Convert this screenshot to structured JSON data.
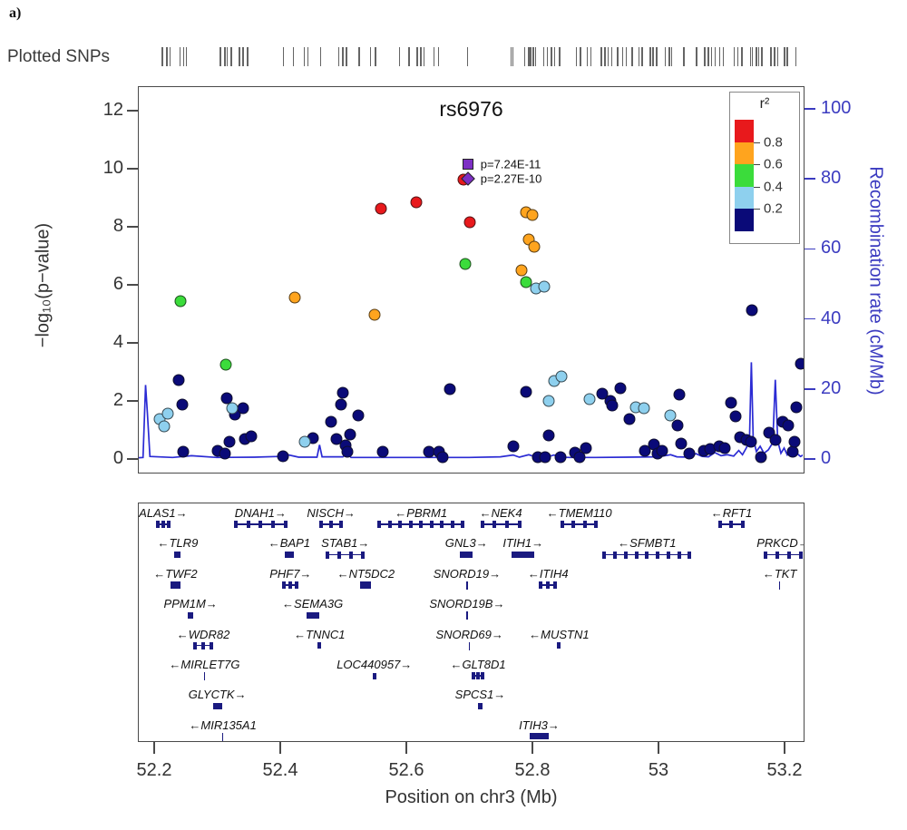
{
  "page": {
    "panel_label": "a)",
    "snp_track_label": "Plotted SNPs"
  },
  "colors": {
    "r2_bins": {
      "0.8-1.0": "#e8191c",
      "0.6-0.8": "#ffa41e",
      "0.4-0.6": "#3bdc3b",
      "0.2-0.4": "#8ed0ee",
      "0.0-0.2": "#0a0a78"
    },
    "recomb_line": "#2b2bd4",
    "right_axis": "#3b3bc0",
    "lead_marker": "#7d2fc4",
    "gene": "#1a1a80"
  },
  "chart_data": {
    "type": "scatter",
    "title": "rs6976",
    "xlabel": "Position on chr3 (Mb)",
    "ylabel_left": "−log₁₀(p−value)",
    "ylabel_right": "Recombination rate (cM/Mb)",
    "xlim": [
      52.174,
      53.232
    ],
    "ylim_left": [
      0,
      12
    ],
    "ylim_right": [
      0,
      100
    ],
    "x_ticks": [
      "52.2",
      "52.4",
      "52.6",
      "52.8",
      "53",
      "53.2"
    ],
    "x_tick_values": [
      52.2,
      52.4,
      52.6,
      52.8,
      53.0,
      53.2
    ],
    "y_ticks_left": [
      0,
      2,
      4,
      6,
      8,
      10,
      12
    ],
    "y_ticks_right": [
      0,
      20,
      40,
      60,
      80,
      100
    ],
    "grid": false,
    "legend": {
      "title": "r²",
      "position": "top-right",
      "bins": [
        "0.8-1.0",
        "0.6-0.8",
        "0.4-0.6",
        "0.2-0.4",
        "0.0-0.2"
      ],
      "tick_labels": [
        "0.8",
        "0.6",
        "0.4",
        "0.2"
      ]
    },
    "lead_snp": {
      "name": "rs6976",
      "square": {
        "x": 52.699,
        "y": 10.14,
        "label": "p=7.24E-11"
      },
      "diamond": {
        "x": 52.699,
        "y": 9.64,
        "label": "p=2.27E-10"
      }
    },
    "snps": [
      {
        "x": 52.24,
        "y": 2.7,
        "bin": "0.0-0.2"
      },
      {
        "x": 52.245,
        "y": 1.85,
        "bin": "0.0-0.2"
      },
      {
        "x": 52.247,
        "y": 0.25,
        "bin": "0.0-0.2"
      },
      {
        "x": 52.301,
        "y": 0.28,
        "bin": "0.0-0.2"
      },
      {
        "x": 52.313,
        "y": 0.18,
        "bin": "0.0-0.2"
      },
      {
        "x": 52.316,
        "y": 2.08,
        "bin": "0.0-0.2"
      },
      {
        "x": 52.32,
        "y": 0.58,
        "bin": "0.0-0.2"
      },
      {
        "x": 52.329,
        "y": 1.52,
        "bin": "0.0-0.2"
      },
      {
        "x": 52.342,
        "y": 1.73,
        "bin": "0.0-0.2"
      },
      {
        "x": 52.345,
        "y": 0.68,
        "bin": "0.0-0.2"
      },
      {
        "x": 52.354,
        "y": 0.76,
        "bin": "0.0-0.2"
      },
      {
        "x": 52.405,
        "y": 0.07,
        "bin": "0.0-0.2"
      },
      {
        "x": 52.452,
        "y": 0.7,
        "bin": "0.0-0.2"
      },
      {
        "x": 52.482,
        "y": 1.28,
        "bin": "0.0-0.2"
      },
      {
        "x": 52.49,
        "y": 0.68,
        "bin": "0.0-0.2"
      },
      {
        "x": 52.497,
        "y": 1.85,
        "bin": "0.0-0.2"
      },
      {
        "x": 52.5,
        "y": 2.28,
        "bin": "0.0-0.2"
      },
      {
        "x": 52.505,
        "y": 0.45,
        "bin": "0.0-0.2"
      },
      {
        "x": 52.507,
        "y": 0.22,
        "bin": "0.0-0.2"
      },
      {
        "x": 52.512,
        "y": 0.84,
        "bin": "0.0-0.2"
      },
      {
        "x": 52.524,
        "y": 1.5,
        "bin": "0.0-0.2"
      },
      {
        "x": 52.563,
        "y": 0.24,
        "bin": "0.0-0.2"
      },
      {
        "x": 52.636,
        "y": 0.22,
        "bin": "0.0-0.2"
      },
      {
        "x": 52.652,
        "y": 0.24,
        "bin": "0.0-0.2"
      },
      {
        "x": 52.658,
        "y": 0.06,
        "bin": "0.0-0.2"
      },
      {
        "x": 52.67,
        "y": 2.38,
        "bin": "0.0-0.2"
      },
      {
        "x": 52.771,
        "y": 0.42,
        "bin": "0.0-0.2"
      },
      {
        "x": 52.79,
        "y": 2.3,
        "bin": "0.0-0.2"
      },
      {
        "x": 52.809,
        "y": 0.05,
        "bin": "0.0-0.2"
      },
      {
        "x": 52.821,
        "y": 0.04,
        "bin": "0.0-0.2"
      },
      {
        "x": 52.826,
        "y": 0.8,
        "bin": "0.0-0.2"
      },
      {
        "x": 52.845,
        "y": 0.05,
        "bin": "0.0-0.2"
      },
      {
        "x": 52.869,
        "y": 0.2,
        "bin": "0.0-0.2"
      },
      {
        "x": 52.876,
        "y": 0.05,
        "bin": "0.0-0.2"
      },
      {
        "x": 52.886,
        "y": 0.36,
        "bin": "0.0-0.2"
      },
      {
        "x": 52.912,
        "y": 2.24,
        "bin": "0.0-0.2"
      },
      {
        "x": 52.924,
        "y": 1.98,
        "bin": "0.0-0.2"
      },
      {
        "x": 52.928,
        "y": 1.84,
        "bin": "0.0-0.2"
      },
      {
        "x": 52.941,
        "y": 2.42,
        "bin": "0.0-0.2"
      },
      {
        "x": 52.955,
        "y": 1.37,
        "bin": "0.0-0.2"
      },
      {
        "x": 52.979,
        "y": 0.26,
        "bin": "0.0-0.2"
      },
      {
        "x": 52.994,
        "y": 0.47,
        "bin": "0.0-0.2"
      },
      {
        "x": 52.999,
        "y": 0.16,
        "bin": "0.0-0.2"
      },
      {
        "x": 53.006,
        "y": 0.28,
        "bin": "0.0-0.2"
      },
      {
        "x": 53.031,
        "y": 1.15,
        "bin": "0.0-0.2"
      },
      {
        "x": 53.034,
        "y": 2.2,
        "bin": "0.0-0.2"
      },
      {
        "x": 53.037,
        "y": 0.52,
        "bin": "0.0-0.2"
      },
      {
        "x": 53.049,
        "y": 0.17,
        "bin": "0.0-0.2"
      },
      {
        "x": 53.073,
        "y": 0.27,
        "bin": "0.0-0.2"
      },
      {
        "x": 53.083,
        "y": 0.32,
        "bin": "0.0-0.2"
      },
      {
        "x": 53.097,
        "y": 0.43,
        "bin": "0.0-0.2"
      },
      {
        "x": 53.106,
        "y": 0.37,
        "bin": "0.0-0.2"
      },
      {
        "x": 53.116,
        "y": 1.93,
        "bin": "0.0-0.2"
      },
      {
        "x": 53.123,
        "y": 1.46,
        "bin": "0.0-0.2"
      },
      {
        "x": 53.13,
        "y": 0.74,
        "bin": "0.0-0.2"
      },
      {
        "x": 53.14,
        "y": 0.63,
        "bin": "0.0-0.2"
      },
      {
        "x": 53.147,
        "y": 0.58,
        "bin": "0.0-0.2"
      },
      {
        "x": 53.149,
        "y": 5.12,
        "bin": "0.0-0.2"
      },
      {
        "x": 53.164,
        "y": 0.06,
        "bin": "0.0-0.2"
      },
      {
        "x": 53.176,
        "y": 0.89,
        "bin": "0.0-0.2"
      },
      {
        "x": 53.186,
        "y": 0.63,
        "bin": "0.0-0.2"
      },
      {
        "x": 53.198,
        "y": 1.26,
        "bin": "0.0-0.2"
      },
      {
        "x": 53.207,
        "y": 1.15,
        "bin": "0.0-0.2"
      },
      {
        "x": 53.214,
        "y": 0.22,
        "bin": "0.0-0.2"
      },
      {
        "x": 53.217,
        "y": 0.58,
        "bin": "0.0-0.2"
      },
      {
        "x": 53.219,
        "y": 1.78,
        "bin": "0.0-0.2"
      },
      {
        "x": 53.226,
        "y": 3.28,
        "bin": "0.0-0.2"
      },
      {
        "x": 52.21,
        "y": 1.35,
        "bin": "0.2-0.4"
      },
      {
        "x": 52.217,
        "y": 1.1,
        "bin": "0.2-0.4"
      },
      {
        "x": 52.222,
        "y": 1.55,
        "bin": "0.2-0.4"
      },
      {
        "x": 52.324,
        "y": 1.72,
        "bin": "0.2-0.4"
      },
      {
        "x": 52.44,
        "y": 0.58,
        "bin": "0.2-0.4"
      },
      {
        "x": 52.807,
        "y": 5.85,
        "bin": "0.2-0.4"
      },
      {
        "x": 52.819,
        "y": 5.92,
        "bin": "0.2-0.4"
      },
      {
        "x": 52.827,
        "y": 2.0,
        "bin": "0.2-0.4"
      },
      {
        "x": 52.835,
        "y": 2.66,
        "bin": "0.2-0.4"
      },
      {
        "x": 52.847,
        "y": 2.84,
        "bin": "0.2-0.4"
      },
      {
        "x": 52.891,
        "y": 2.06,
        "bin": "0.2-0.4"
      },
      {
        "x": 52.965,
        "y": 1.77,
        "bin": "0.2-0.4"
      },
      {
        "x": 52.977,
        "y": 1.72,
        "bin": "0.2-0.4"
      },
      {
        "x": 53.02,
        "y": 1.47,
        "bin": "0.2-0.4"
      },
      {
        "x": 52.243,
        "y": 5.42,
        "bin": "0.4-0.6"
      },
      {
        "x": 52.314,
        "y": 3.22,
        "bin": "0.4-0.6"
      },
      {
        "x": 52.694,
        "y": 6.7,
        "bin": "0.4-0.6"
      },
      {
        "x": 52.791,
        "y": 6.08,
        "bin": "0.4-0.6"
      },
      {
        "x": 52.424,
        "y": 5.55,
        "bin": "0.6-0.8"
      },
      {
        "x": 52.55,
        "y": 4.95,
        "bin": "0.6-0.8"
      },
      {
        "x": 52.784,
        "y": 6.48,
        "bin": "0.6-0.8"
      },
      {
        "x": 52.79,
        "y": 8.48,
        "bin": "0.6-0.8"
      },
      {
        "x": 52.8,
        "y": 8.4,
        "bin": "0.6-0.8"
      },
      {
        "x": 52.795,
        "y": 7.55,
        "bin": "0.6-0.8"
      },
      {
        "x": 52.803,
        "y": 7.3,
        "bin": "0.6-0.8"
      },
      {
        "x": 52.56,
        "y": 8.62,
        "bin": "0.8-1.0"
      },
      {
        "x": 52.617,
        "y": 8.84,
        "bin": "0.8-1.0"
      },
      {
        "x": 52.701,
        "y": 8.15,
        "bin": "0.8-1.0"
      },
      {
        "x": 52.692,
        "y": 9.62,
        "bin": "0.8-1.0"
      }
    ],
    "recomb_line": [
      [
        52.174,
        0.2
      ],
      [
        52.183,
        0.3
      ],
      [
        52.187,
        21.0
      ],
      [
        52.19,
        13.0
      ],
      [
        52.194,
        0.6
      ],
      [
        52.23,
        0.3
      ],
      [
        52.26,
        0.8
      ],
      [
        52.3,
        0.3
      ],
      [
        52.36,
        0.4
      ],
      [
        52.4,
        0.6
      ],
      [
        52.41,
        1.2
      ],
      [
        52.43,
        0.4
      ],
      [
        52.459,
        0.4
      ],
      [
        52.463,
        3.9
      ],
      [
        52.467,
        0.5
      ],
      [
        52.5,
        0.5
      ],
      [
        52.507,
        1.5
      ],
      [
        52.513,
        0.3
      ],
      [
        52.55,
        0.3
      ],
      [
        52.6,
        0.3
      ],
      [
        52.65,
        0.3
      ],
      [
        52.7,
        0.3
      ],
      [
        52.75,
        0.5
      ],
      [
        52.77,
        1.0
      ],
      [
        52.78,
        0.4
      ],
      [
        52.795,
        1.1
      ],
      [
        52.805,
        0.5
      ],
      [
        52.815,
        0.9
      ],
      [
        52.825,
        0.5
      ],
      [
        52.835,
        1.0
      ],
      [
        52.845,
        0.4
      ],
      [
        52.86,
        0.3
      ],
      [
        52.9,
        0.3
      ],
      [
        52.95,
        0.4
      ],
      [
        53.0,
        0.5
      ],
      [
        53.02,
        1.1
      ],
      [
        53.03,
        0.5
      ],
      [
        53.05,
        0.4
      ],
      [
        53.06,
        1.4
      ],
      [
        53.07,
        0.6
      ],
      [
        53.08,
        0.5
      ],
      [
        53.09,
        1.7
      ],
      [
        53.1,
        0.8
      ],
      [
        53.11,
        1.1
      ],
      [
        53.12,
        0.7
      ],
      [
        53.128,
        2.3
      ],
      [
        53.134,
        1.1
      ],
      [
        53.14,
        3.0
      ],
      [
        53.145,
        5.0
      ],
      [
        53.148,
        27.5
      ],
      [
        53.151,
        6.0
      ],
      [
        53.156,
        2.0
      ],
      [
        53.162,
        3.5
      ],
      [
        53.168,
        1.5
      ],
      [
        53.175,
        2.5
      ],
      [
        53.182,
        4.5
      ],
      [
        53.186,
        22.5
      ],
      [
        53.19,
        5.0
      ],
      [
        53.195,
        1.5
      ],
      [
        53.2,
        3.0
      ],
      [
        53.205,
        1.0
      ],
      [
        53.21,
        2.0
      ],
      [
        53.215,
        0.8
      ],
      [
        53.22,
        1.5
      ],
      [
        53.226,
        0.6
      ],
      [
        53.232,
        1.2
      ]
    ],
    "plotted_snps_rug": [
      52.212,
      52.219,
      52.224,
      52.24,
      52.246,
      52.25,
      52.304,
      52.311,
      52.315,
      52.321,
      52.334,
      52.34,
      52.347,
      52.404,
      52.42,
      52.437,
      52.443,
      52.463,
      52.492,
      52.498,
      52.504,
      52.524,
      52.542,
      52.55,
      52.588,
      52.603,
      52.616,
      52.622,
      52.627,
      52.643,
      52.65,
      52.696,
      52.765,
      52.768,
      52.787,
      52.793,
      52.796,
      52.8,
      52.804,
      52.817,
      52.823,
      52.829,
      52.834,
      52.842,
      52.869,
      52.875,
      52.886,
      52.892,
      52.908,
      52.914,
      52.919,
      52.925,
      52.934,
      52.942,
      52.948,
      52.957,
      52.968,
      52.973,
      52.986,
      52.99,
      52.996,
      53.01,
      53.016,
      53.02,
      53.039,
      53.059,
      53.072,
      53.078,
      53.083,
      53.089,
      53.096,
      53.102,
      53.119,
      53.125,
      53.131,
      53.145,
      53.148,
      53.154,
      53.158,
      53.163,
      53.177,
      53.183,
      53.188,
      53.199,
      53.203,
      53.217
    ],
    "genes": [
      {
        "name": "ALAS1",
        "strand": "plus",
        "row": 1,
        "start": 52.204,
        "end": 52.226,
        "style": "exons"
      },
      {
        "name": "DNAH1",
        "strand": "plus",
        "row": 1,
        "start": 52.327,
        "end": 52.412,
        "style": "exons"
      },
      {
        "name": "NISCH",
        "strand": "plus",
        "row": 1,
        "start": 52.463,
        "end": 52.5,
        "style": "exons"
      },
      {
        "name": "PBRM1",
        "strand": "minus",
        "row": 1,
        "start": 52.555,
        "end": 52.693,
        "style": "exons"
      },
      {
        "name": "NEK4",
        "strand": "minus",
        "row": 1,
        "start": 52.718,
        "end": 52.783,
        "style": "exons"
      },
      {
        "name": "TMEM110",
        "strand": "minus",
        "row": 1,
        "start": 52.845,
        "end": 52.905,
        "style": "exons"
      },
      {
        "name": "RFT1",
        "strand": "minus",
        "row": 1,
        "start": 53.095,
        "end": 53.138,
        "style": "exons"
      },
      {
        "name": "TLR9",
        "strand": "minus",
        "row": 2,
        "start": 52.233,
        "end": 52.243,
        "style": "solid"
      },
      {
        "name": "BAP1",
        "strand": "minus",
        "row": 2,
        "start": 52.408,
        "end": 52.422,
        "style": "solid"
      },
      {
        "name": "STAB1",
        "strand": "plus",
        "row": 2,
        "start": 52.473,
        "end": 52.535,
        "style": "exons"
      },
      {
        "name": "GNL3",
        "strand": "plus",
        "row": 2,
        "start": 52.686,
        "end": 52.706,
        "style": "solid"
      },
      {
        "name": "ITIH1",
        "strand": "plus",
        "row": 2,
        "start": 52.768,
        "end": 52.804,
        "style": "solid"
      },
      {
        "name": "SFMBT1",
        "strand": "minus",
        "row": 2,
        "start": 52.912,
        "end": 53.053,
        "style": "exons"
      },
      {
        "name": "PRKCD",
        "strand": "plus",
        "row": 2,
        "start": 53.168,
        "end": 53.229,
        "style": "exons"
      },
      {
        "name": "TWF2",
        "strand": "minus",
        "row": 3,
        "start": 52.226,
        "end": 52.243,
        "style": "exons"
      },
      {
        "name": "PHF7",
        "strand": "plus",
        "row": 3,
        "start": 52.404,
        "end": 52.43,
        "style": "exons"
      },
      {
        "name": "NT5DC2",
        "strand": "minus",
        "row": 3,
        "start": 52.528,
        "end": 52.545,
        "style": "exons"
      },
      {
        "name": "SNORD19",
        "strand": "plus",
        "row": 3,
        "start": 52.695,
        "end": 52.699,
        "style": "tick"
      },
      {
        "name": "ITIH4",
        "strand": "minus",
        "row": 3,
        "start": 52.811,
        "end": 52.84,
        "style": "exons"
      },
      {
        "name": "TKT",
        "strand": "minus",
        "row": 3,
        "start": 53.19,
        "end": 53.196,
        "style": "tick"
      },
      {
        "name": "PPM1M",
        "strand": "plus",
        "row": 4,
        "start": 52.254,
        "end": 52.263,
        "style": "solid"
      },
      {
        "name": "SEMA3G",
        "strand": "minus",
        "row": 4,
        "start": 52.442,
        "end": 52.462,
        "style": "solid"
      },
      {
        "name": "SNORD19B",
        "strand": "plus",
        "row": 4,
        "start": 52.695,
        "end": 52.699,
        "style": "tick"
      },
      {
        "name": "WDR82",
        "strand": "minus",
        "row": 5,
        "start": 52.263,
        "end": 52.294,
        "style": "exons"
      },
      {
        "name": "TNNC1",
        "strand": "minus",
        "row": 5,
        "start": 52.46,
        "end": 52.466,
        "style": "solid"
      },
      {
        "name": "SNORD69",
        "strand": "plus",
        "row": 5,
        "start": 52.699,
        "end": 52.703,
        "style": "tick"
      },
      {
        "name": "MUSTN1",
        "strand": "minus",
        "row": 5,
        "start": 52.84,
        "end": 52.846,
        "style": "solid"
      },
      {
        "name": "MIRLET7G",
        "strand": "minus",
        "row": 6,
        "start": 52.279,
        "end": 52.282,
        "style": "tick"
      },
      {
        "name": "LOC440957",
        "strand": "plus",
        "row": 6,
        "start": 52.547,
        "end": 52.553,
        "style": "solid"
      },
      {
        "name": "GLT8D1",
        "strand": "minus",
        "row": 6,
        "start": 52.704,
        "end": 52.725,
        "style": "exons"
      },
      {
        "name": "GLYCTK",
        "strand": "plus",
        "row": 7,
        "start": 52.294,
        "end": 52.308,
        "style": "solid"
      },
      {
        "name": "SPCS1",
        "strand": "plus",
        "row": 7,
        "start": 52.715,
        "end": 52.721,
        "style": "solid"
      },
      {
        "name": "MIR135A1",
        "strand": "minus",
        "row": 8,
        "start": 52.308,
        "end": 52.311,
        "style": "tick"
      },
      {
        "name": "ITIH3",
        "strand": "plus",
        "row": 8,
        "start": 52.797,
        "end": 52.826,
        "style": "solid"
      }
    ]
  }
}
